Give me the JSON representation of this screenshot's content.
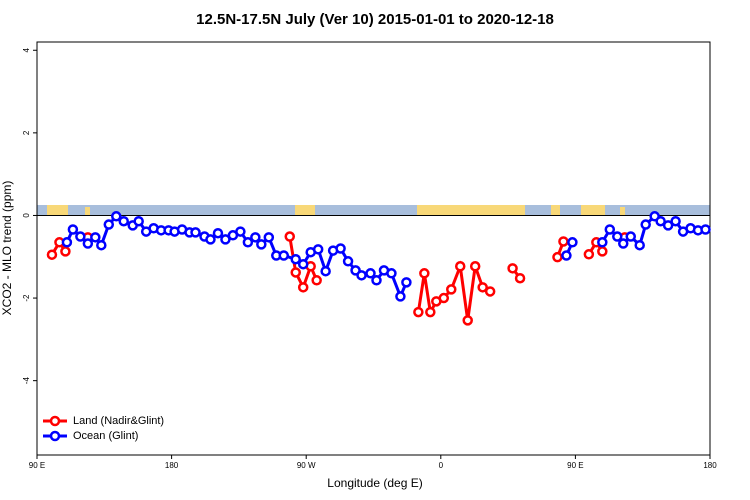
{
  "chart_data": {
    "type": "line",
    "title": "12.5N-17.5N July (Ver 10)   2015-01-01 to 2020-12-18",
    "x_label": "Longitude (deg E)",
    "y_label": "XCO2 - MLO trend (ppm)",
    "xlim": [
      90,
      540
    ],
    "xticks": [
      {
        "value": 90,
        "label": "90 E"
      },
      180,
      {
        "value": 270,
        "label": "90 W"
      },
      {
        "value": 360,
        "label": "0"
      },
      {
        "value": 450,
        "label": "90 E"
      },
      180
    ],
    "ylim": [
      -5.8,
      4.2
    ],
    "yticks": [
      -4,
      -2,
      0,
      2,
      4
    ],
    "legend": "bottom-left",
    "series": [
      {
        "name": "Land (Nadir&Glint)",
        "color": "#ff0000",
        "x": [
          100,
          105,
          109,
          124,
          259,
          263,
          268,
          273,
          277,
          345,
          349,
          353,
          357,
          362,
          367,
          373,
          378,
          383,
          388,
          393,
          408,
          413,
          438,
          442,
          459,
          464,
          468,
          483
        ],
        "values": [
          -0.95,
          -0.65,
          -0.87,
          -0.53,
          -0.51,
          -1.38,
          -1.74,
          -1.23,
          -1.57,
          -2.34,
          -1.4,
          -2.34,
          -2.08,
          -2.0,
          -1.79,
          -1.23,
          -2.54,
          -1.23,
          -1.74,
          -1.84,
          -1.28,
          -1.52,
          -1.01,
          -0.63,
          -0.94,
          -0.65,
          -0.87,
          -0.53
        ],
        "segments": [
          [
            0,
            2
          ],
          [
            3,
            3
          ],
          [
            4,
            8
          ],
          [
            9,
            19
          ],
          [
            20,
            21
          ],
          [
            22,
            23
          ],
          [
            24,
            26
          ],
          [
            27,
            27
          ]
        ]
      },
      {
        "name": "Ocean (Glint)",
        "color": "#0000ff",
        "x": [
          110,
          114,
          119,
          124,
          129,
          133,
          138,
          143,
          148,
          154,
          158,
          163,
          168,
          173,
          178,
          182,
          187,
          192,
          196,
          202,
          206,
          211,
          216,
          221,
          226,
          231,
          236,
          240,
          245,
          250,
          255,
          263,
          268,
          273,
          278,
          283,
          288,
          293,
          298,
          303,
          307,
          313,
          317,
          322,
          327,
          333,
          337,
          444,
          448,
          468,
          473,
          478,
          482,
          487,
          493,
          497,
          503,
          507,
          512,
          517,
          522,
          527,
          532,
          537
        ],
        "values": [
          -0.65,
          -0.34,
          -0.51,
          -0.68,
          -0.53,
          -0.72,
          -0.22,
          -0.02,
          -0.14,
          -0.24,
          -0.14,
          -0.39,
          -0.31,
          -0.36,
          -0.36,
          -0.39,
          -0.34,
          -0.41,
          -0.41,
          -0.51,
          -0.58,
          -0.43,
          -0.58,
          -0.48,
          -0.39,
          -0.65,
          -0.53,
          -0.7,
          -0.53,
          -0.97,
          -0.97,
          -1.06,
          -1.18,
          -0.89,
          -0.82,
          -1.35,
          -0.85,
          -0.8,
          -1.11,
          -1.33,
          -1.45,
          -1.4,
          -1.57,
          -1.33,
          -1.4,
          -1.96,
          -1.62,
          -0.97,
          -0.65,
          -0.65,
          -0.34,
          -0.51,
          -0.68,
          -0.51,
          -0.72,
          -0.22,
          -0.02,
          -0.14,
          -0.24,
          -0.14,
          -0.39,
          -0.31,
          -0.36,
          -0.34
        ],
        "segments": [
          [
            0,
            46
          ],
          [
            47,
            48
          ],
          [
            49,
            63
          ]
        ]
      }
    ]
  }
}
